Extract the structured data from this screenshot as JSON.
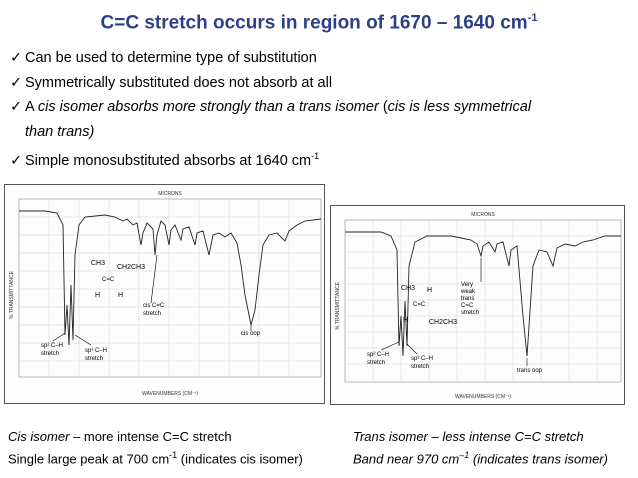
{
  "title": {
    "main": "C=C stretch occurs in region of 1670 – 1640 cm",
    "sup": "-1"
  },
  "bullets": [
    {
      "segments": [
        {
          "text": "Can be used to determine type of substitution",
          "italic": false
        }
      ]
    },
    {
      "segments": [
        {
          "text": "Symmetrically substituted does not absorb at all",
          "italic": false
        }
      ]
    },
    {
      "segments": [
        {
          "text": "A ",
          "italic": false
        },
        {
          "text": "cis isomer absorbs more strongly than a trans isomer",
          "italic": true
        },
        {
          "text": "  (",
          "italic": false
        },
        {
          "text": "cis is less symmetrical",
          "italic": true
        }
      ]
    },
    {
      "segments": [
        {
          "text": "than trans)",
          "italic": true
        }
      ],
      "continuation": true
    },
    {
      "segments": [
        {
          "text": "Simple monosubstituted absorbs at 1640 cm",
          "italic": false
        }
      ],
      "sup": "-1"
    }
  ],
  "check_symbol": "✓",
  "spectrum_cis": {
    "axis_top": "MICRONS",
    "axis_bottom": "WAVENUMBERS (CM⁻¹)",
    "axis_left": "% TRANSMITTANCE",
    "molecule": {
      "top_left": "CH3",
      "top_right": "CH2CH3",
      "h_left": "H",
      "h_right": "H",
      "bond": "C=C"
    },
    "labels": {
      "sp2": "sp² C–H\nstretch",
      "sp3": "sp³ C–H\nstretch",
      "cc": "cis C=C\nstretch",
      "oop": "cis oop"
    }
  },
  "spectrum_trans": {
    "axis_top": "MICRONS",
    "axis_bottom": "WAVENUMBERS (CM⁻¹)",
    "axis_left": "% TRANSMITTANCE",
    "molecule": {
      "top_left": "CH3",
      "bottom_right": "CH2CH3",
      "h_left": "H",
      "h_right": "H",
      "bond": "C=C"
    },
    "labels": {
      "weak": "Very\nweak\ntrans\nC=C\nstretch",
      "sp2": "sp² C–H\nstretch",
      "sp3": "sp³ C–H\nstretch",
      "oop": "trans oop"
    }
  },
  "caption_left": {
    "line1_italic": "Cis isomer",
    "line1_rest": " – more intense C=C stretch",
    "line2_pre": "Single large peak at 700 cm",
    "line2_sup": "-1",
    "line2_post": " (indicates cis isomer)"
  },
  "caption_right": {
    "line1": "Trans isomer – less intense C=C stretch",
    "line2_pre": "Band near 970 cm",
    "line2_sup": "–1",
    "line2_post": " (indicates trans isomer)"
  }
}
